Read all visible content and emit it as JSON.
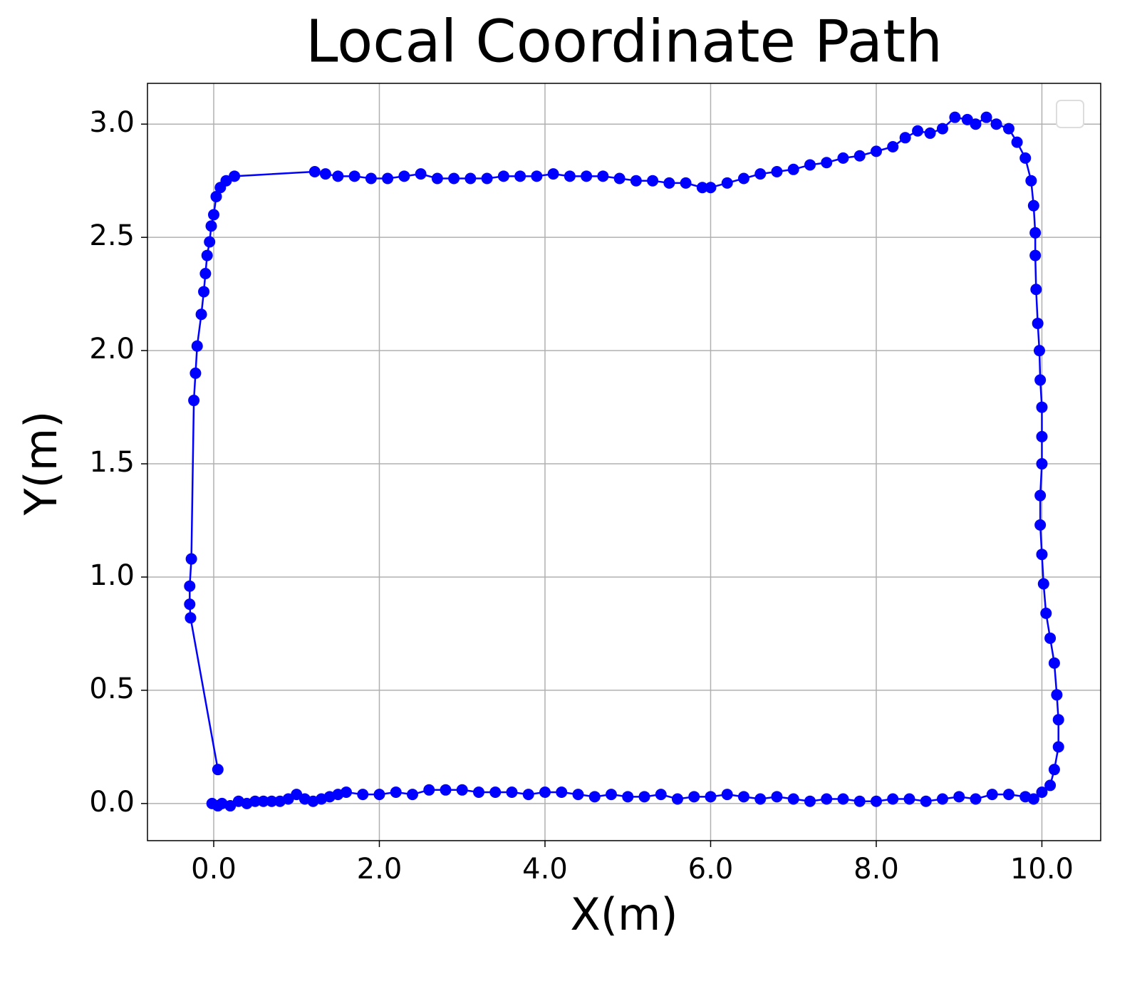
{
  "chart_data": {
    "type": "line",
    "title": "Local Coordinate Path",
    "x_label": "X(m)",
    "y_label": "Y(m)",
    "color": "#0000ff",
    "grid": true,
    "legend": "upper right",
    "marker": "circle",
    "xlim": [
      -0.8,
      10.71
    ],
    "ylim": [
      -0.164,
      3.18
    ],
    "xticks": [
      {
        "value": 0,
        "label": "0.0"
      },
      {
        "value": 2,
        "label": "2.0"
      },
      {
        "value": 4,
        "label": "4.0"
      },
      {
        "value": 6,
        "label": "6.0"
      },
      {
        "value": 8,
        "label": "8.0"
      },
      {
        "value": 10,
        "label": "10.0"
      }
    ],
    "yticks": [
      {
        "value": 0,
        "label": "0.0"
      },
      {
        "value": 0.5,
        "label": "0.5"
      },
      {
        "value": 1,
        "label": "1.0"
      },
      {
        "value": 1.5,
        "label": "1.5"
      },
      {
        "value": 2,
        "label": "2.0"
      },
      {
        "value": 2.5,
        "label": "2.5"
      },
      {
        "value": 3,
        "label": "3.0"
      }
    ],
    "x": [
      -0.02,
      0.05,
      0.1,
      0.2,
      0.3,
      0.4,
      0.5,
      0.6,
      0.7,
      0.8,
      0.9,
      1.0,
      1.1,
      1.2,
      1.3,
      1.4,
      1.5,
      1.6,
      1.8,
      2.0,
      2.2,
      2.4,
      2.6,
      2.8,
      3.0,
      3.2,
      3.4,
      3.6,
      3.8,
      4.0,
      4.2,
      4.4,
      4.6,
      4.8,
      5.0,
      5.2,
      5.4,
      5.6,
      5.8,
      6.0,
      6.2,
      6.4,
      6.6,
      6.8,
      7.0,
      7.2,
      7.4,
      7.6,
      7.8,
      8.0,
      8.2,
      8.4,
      8.6,
      8.8,
      9.0,
      9.2,
      9.4,
      9.6,
      9.8,
      9.9,
      10.0,
      10.1,
      10.15,
      10.2,
      10.2,
      10.18,
      10.15,
      10.1,
      10.05,
      10.02,
      10.0,
      9.98,
      9.98,
      10.0,
      10.0,
      10.0,
      9.98,
      9.97,
      9.95,
      9.93,
      9.92,
      9.92,
      9.9,
      9.87,
      9.8,
      9.7,
      9.6,
      9.45,
      9.33,
      9.2,
      9.1,
      8.95,
      8.8,
      8.65,
      8.5,
      8.35,
      8.2,
      8.0,
      7.8,
      7.6,
      7.4,
      7.2,
      7.0,
      6.8,
      6.6,
      6.4,
      6.2,
      6.0,
      5.9,
      5.7,
      5.5,
      5.3,
      5.1,
      4.9,
      4.7,
      4.5,
      4.3,
      4.1,
      3.9,
      3.7,
      3.5,
      3.3,
      3.1,
      2.9,
      2.7,
      2.5,
      2.3,
      2.1,
      1.9,
      1.7,
      1.5,
      1.35,
      1.22,
      0.25,
      0.15,
      0.08,
      0.03,
      0.0,
      -0.03,
      -0.05,
      -0.08,
      -0.1,
      -0.12,
      -0.15,
      -0.2,
      -0.22,
      -0.24,
      -0.27,
      -0.29,
      -0.29,
      -0.28,
      0.05
    ],
    "values": [
      0.0,
      -0.01,
      0.0,
      -0.01,
      0.01,
      0.0,
      0.01,
      0.01,
      0.01,
      0.01,
      0.02,
      0.04,
      0.02,
      0.01,
      0.02,
      0.03,
      0.04,
      0.05,
      0.04,
      0.04,
      0.05,
      0.04,
      0.06,
      0.06,
      0.06,
      0.05,
      0.05,
      0.05,
      0.04,
      0.05,
      0.05,
      0.04,
      0.03,
      0.04,
      0.03,
      0.03,
      0.04,
      0.02,
      0.03,
      0.03,
      0.04,
      0.03,
      0.02,
      0.03,
      0.02,
      0.01,
      0.02,
      0.02,
      0.01,
      0.01,
      0.02,
      0.02,
      0.01,
      0.02,
      0.03,
      0.02,
      0.04,
      0.04,
      0.03,
      0.02,
      0.05,
      0.08,
      0.15,
      0.25,
      0.37,
      0.48,
      0.62,
      0.73,
      0.84,
      0.97,
      1.1,
      1.23,
      1.36,
      1.5,
      1.62,
      1.75,
      1.87,
      2.0,
      2.12,
      2.27,
      2.42,
      2.52,
      2.64,
      2.75,
      2.85,
      2.92,
      2.98,
      3.0,
      3.03,
      3.0,
      3.02,
      3.03,
      2.98,
      2.96,
      2.97,
      2.94,
      2.9,
      2.88,
      2.86,
      2.85,
      2.83,
      2.82,
      2.8,
      2.79,
      2.78,
      2.76,
      2.74,
      2.72,
      2.72,
      2.74,
      2.74,
      2.75,
      2.75,
      2.76,
      2.77,
      2.77,
      2.77,
      2.78,
      2.77,
      2.77,
      2.77,
      2.76,
      2.76,
      2.76,
      2.76,
      2.78,
      2.77,
      2.76,
      2.76,
      2.77,
      2.77,
      2.78,
      2.79,
      2.77,
      2.75,
      2.72,
      2.68,
      2.6,
      2.55,
      2.48,
      2.42,
      2.34,
      2.26,
      2.16,
      2.02,
      1.9,
      1.78,
      1.08,
      0.96,
      0.88,
      0.82,
      0.15
    ]
  }
}
